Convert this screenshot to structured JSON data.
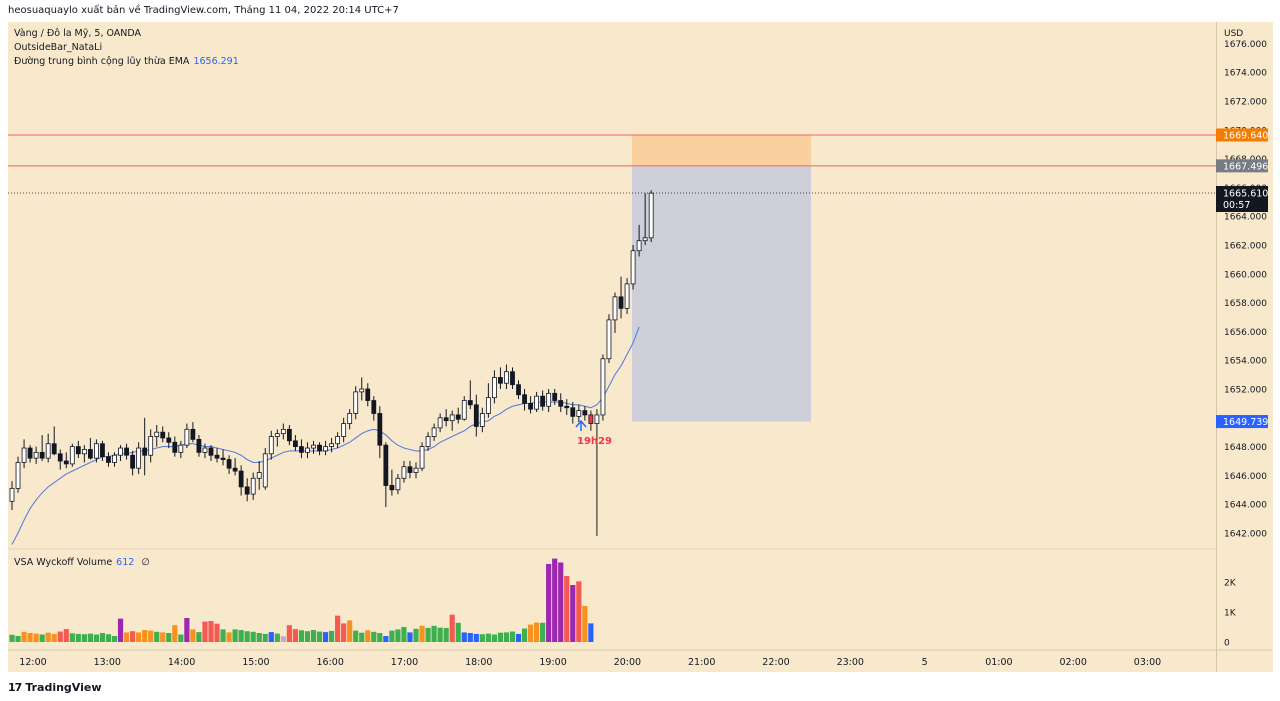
{
  "header": {
    "publish_line": "heosuaquaylo xuất bản về TradingView.com, Tháng 11 04, 2022 20:14 UTC+7"
  },
  "legend": {
    "symbol": "Vàng / Đô la Mỹ, 5, OANDA",
    "indicator1": "OutsideBar_NataLi",
    "ema_label": "Đường trung bình cộng lũy thừa EMA",
    "ema_value": "1656.291",
    "volume_label": "VSA Wyckoff Volume",
    "volume_value": "612",
    "volume_extra": "∅"
  },
  "annotation": {
    "text": "19h29"
  },
  "footer": {
    "brand": "TradingView"
  },
  "colors": {
    "bg": "#f9e9cc",
    "line_red": "#f2665a",
    "ema": "#5b7fde",
    "stop_zone": "#f8cf9d",
    "target_zone": "#cfcfd9",
    "label_orange": "#f57c00",
    "label_gray": "#787b86",
    "label_blue": "#2962ff"
  },
  "chart_data": {
    "type": "candlestick",
    "currency": "USD",
    "y_ticks": [
      "1676.000",
      "1674.000",
      "1672.000",
      "1670.000",
      "1668.000",
      "1666.000",
      "1664.000",
      "1662.000",
      "1660.000",
      "1658.000",
      "1656.000",
      "1654.000",
      "1652.000",
      "1650.000",
      "1648.000",
      "1646.000",
      "1644.000",
      "1642.000"
    ],
    "x_ticks": [
      "12:00",
      "13:00",
      "14:00",
      "15:00",
      "16:00",
      "17:00",
      "18:00",
      "19:00",
      "20:00",
      "21:00",
      "22:00",
      "23:00",
      "5",
      "01:00",
      "02:00",
      "03:00"
    ],
    "volume_ticks": [
      "2K",
      "1K",
      "0"
    ],
    "levels": {
      "red_upper": 1669.64,
      "red_lower": 1667.496,
      "current_price": 1665.61,
      "target": 1649.739
    },
    "price_labels": {
      "upper": "1669.640",
      "lower": "1667.496",
      "current": "1665.610",
      "countdown": "00:57",
      "target": "1649.739"
    },
    "candles": [
      [
        1644.2,
        1645.6,
        1643.6,
        1645.1
      ],
      [
        1645.1,
        1647.3,
        1644.8,
        1646.9
      ],
      [
        1646.9,
        1648.5,
        1646.5,
        1647.9
      ],
      [
        1647.9,
        1648.1,
        1646.9,
        1647.2
      ],
      [
        1647.2,
        1648.0,
        1646.8,
        1647.6
      ],
      [
        1647.6,
        1648.8,
        1647.0,
        1647.2
      ],
      [
        1647.2,
        1648.9,
        1646.9,
        1648.2
      ],
      [
        1648.2,
        1649.4,
        1647.4,
        1647.5
      ],
      [
        1647.5,
        1647.8,
        1646.4,
        1647.0
      ],
      [
        1647.0,
        1647.6,
        1646.5,
        1646.8
      ],
      [
        1646.8,
        1648.2,
        1646.6,
        1648.0
      ],
      [
        1648.0,
        1648.4,
        1647.2,
        1647.5
      ],
      [
        1647.5,
        1648.1,
        1646.9,
        1647.8
      ],
      [
        1647.8,
        1648.6,
        1647.1,
        1647.2
      ],
      [
        1647.2,
        1648.5,
        1646.9,
        1648.2
      ],
      [
        1648.2,
        1648.4,
        1647.0,
        1647.3
      ],
      [
        1647.3,
        1647.6,
        1646.6,
        1646.9
      ],
      [
        1646.9,
        1647.6,
        1646.6,
        1647.4
      ],
      [
        1647.4,
        1648.1,
        1647.0,
        1647.9
      ],
      [
        1647.9,
        1648.2,
        1647.1,
        1647.4
      ],
      [
        1647.4,
        1647.7,
        1646.0,
        1646.5
      ],
      [
        1646.5,
        1648.3,
        1646.1,
        1647.9
      ],
      [
        1647.9,
        1650.0,
        1646.0,
        1647.4
      ],
      [
        1647.4,
        1649.2,
        1646.9,
        1648.7
      ],
      [
        1648.7,
        1649.5,
        1648.0,
        1649.0
      ],
      [
        1649.0,
        1649.4,
        1648.3,
        1648.6
      ],
      [
        1648.6,
        1649.0,
        1647.9,
        1648.3
      ],
      [
        1648.3,
        1648.7,
        1647.3,
        1647.6
      ],
      [
        1647.6,
        1648.4,
        1647.2,
        1648.1
      ],
      [
        1648.1,
        1649.6,
        1647.9,
        1649.2
      ],
      [
        1649.2,
        1649.7,
        1648.3,
        1648.5
      ],
      [
        1648.5,
        1648.8,
        1647.3,
        1647.6
      ],
      [
        1647.6,
        1648.2,
        1647.2,
        1647.9
      ],
      [
        1647.9,
        1648.1,
        1647.0,
        1647.4
      ],
      [
        1647.4,
        1647.9,
        1646.9,
        1647.2
      ],
      [
        1647.2,
        1647.8,
        1646.7,
        1647.1
      ],
      [
        1647.1,
        1647.4,
        1646.1,
        1646.5
      ],
      [
        1646.5,
        1647.2,
        1646.0,
        1646.3
      ],
      [
        1646.3,
        1646.7,
        1644.6,
        1645.2
      ],
      [
        1645.2,
        1645.8,
        1644.2,
        1644.7
      ],
      [
        1644.7,
        1646.2,
        1644.3,
        1645.8
      ],
      [
        1645.8,
        1647.0,
        1645.0,
        1646.2
      ],
      [
        1645.2,
        1647.9,
        1645.0,
        1647.5
      ],
      [
        1647.5,
        1649.1,
        1647.1,
        1648.7
      ],
      [
        1648.7,
        1649.2,
        1648.0,
        1648.9
      ],
      [
        1648.9,
        1649.6,
        1648.5,
        1649.2
      ],
      [
        1649.2,
        1649.5,
        1648.1,
        1648.4
      ],
      [
        1648.4,
        1648.8,
        1647.7,
        1648.0
      ],
      [
        1648.0,
        1648.5,
        1647.2,
        1647.6
      ],
      [
        1647.6,
        1648.3,
        1647.2,
        1647.9
      ],
      [
        1647.9,
        1648.4,
        1647.5,
        1648.1
      ],
      [
        1648.1,
        1648.3,
        1647.4,
        1647.7
      ],
      [
        1647.7,
        1648.4,
        1647.4,
        1648.0
      ],
      [
        1648.0,
        1648.6,
        1647.6,
        1648.2
      ],
      [
        1648.2,
        1649.0,
        1647.9,
        1648.7
      ],
      [
        1648.7,
        1650.0,
        1648.3,
        1649.6
      ],
      [
        1649.6,
        1650.6,
        1649.2,
        1650.3
      ],
      [
        1650.3,
        1652.2,
        1649.9,
        1651.8
      ],
      [
        1651.8,
        1652.8,
        1651.2,
        1652.0
      ],
      [
        1652.0,
        1652.4,
        1650.8,
        1651.2
      ],
      [
        1651.2,
        1651.5,
        1649.8,
        1650.3
      ],
      [
        1650.3,
        1650.8,
        1647.2,
        1648.1
      ],
      [
        1648.1,
        1648.3,
        1643.8,
        1645.3
      ],
      [
        1645.3,
        1646.4,
        1644.6,
        1645.0
      ],
      [
        1645.0,
        1646.1,
        1644.7,
        1645.8
      ],
      [
        1645.8,
        1647.0,
        1645.5,
        1646.6
      ],
      [
        1646.6,
        1647.0,
        1645.8,
        1646.2
      ],
      [
        1646.2,
        1646.9,
        1645.8,
        1646.5
      ],
      [
        1646.5,
        1648.3,
        1646.3,
        1648.0
      ],
      [
        1648.0,
        1649.0,
        1647.7,
        1648.7
      ],
      [
        1648.7,
        1649.6,
        1648.4,
        1649.3
      ],
      [
        1649.3,
        1650.3,
        1649.0,
        1650.0
      ],
      [
        1650.0,
        1650.6,
        1649.4,
        1649.8
      ],
      [
        1649.8,
        1650.5,
        1649.1,
        1650.2
      ],
      [
        1650.2,
        1650.7,
        1649.6,
        1649.9
      ],
      [
        1649.9,
        1651.5,
        1649.8,
        1651.2
      ],
      [
        1651.2,
        1652.6,
        1650.6,
        1650.9
      ],
      [
        1650.9,
        1651.6,
        1648.7,
        1649.4
      ],
      [
        1649.4,
        1650.7,
        1649.0,
        1650.3
      ],
      [
        1650.3,
        1652.4,
        1650.0,
        1651.4
      ],
      [
        1651.4,
        1653.3,
        1651.0,
        1652.8
      ],
      [
        1652.8,
        1653.5,
        1652.0,
        1652.4
      ],
      [
        1652.4,
        1653.7,
        1652.0,
        1653.2
      ],
      [
        1653.2,
        1653.5,
        1652.0,
        1652.3
      ],
      [
        1652.3,
        1652.6,
        1651.3,
        1651.6
      ],
      [
        1651.6,
        1652.0,
        1650.5,
        1651.0
      ],
      [
        1651.0,
        1651.5,
        1650.3,
        1650.6
      ],
      [
        1650.6,
        1651.8,
        1650.4,
        1651.5
      ],
      [
        1651.5,
        1651.9,
        1650.5,
        1650.8
      ],
      [
        1650.8,
        1652.0,
        1650.4,
        1651.7
      ],
      [
        1651.7,
        1652.0,
        1650.9,
        1651.2
      ],
      [
        1651.2,
        1651.7,
        1650.4,
        1650.8
      ],
      [
        1650.8,
        1651.3,
        1650.2,
        1650.7
      ],
      [
        1650.7,
        1651.1,
        1649.6,
        1650.1
      ],
      [
        1650.1,
        1650.9,
        1649.7,
        1650.5
      ],
      [
        1650.5,
        1650.8,
        1649.8,
        1650.2
      ],
      [
        1650.2,
        1650.5,
        1649.1,
        1649.6
      ],
      [
        1649.6,
        1650.6,
        1641.8,
        1650.2
      ],
      [
        1650.2,
        1654.4,
        1649.8,
        1654.1
      ],
      [
        1654.1,
        1657.2,
        1653.8,
        1656.8
      ],
      [
        1656.8,
        1658.7,
        1655.9,
        1658.4
      ],
      [
        1658.4,
        1659.8,
        1656.9,
        1657.6
      ],
      [
        1657.6,
        1659.7,
        1657.2,
        1659.3
      ],
      [
        1659.3,
        1662.0,
        1658.9,
        1661.6
      ],
      [
        1661.6,
        1663.4,
        1661.2,
        1662.3
      ],
      [
        1662.3,
        1665.6,
        1662.0,
        1662.5
      ],
      [
        1662.5,
        1665.8,
        1662.2,
        1665.6
      ]
    ],
    "ema": [
      1641.2,
      1642.0,
      1642.9,
      1643.7,
      1644.3,
      1644.8,
      1645.2,
      1645.5,
      1645.8,
      1646.1,
      1646.3,
      1646.5,
      1646.7,
      1646.9,
      1647.1,
      1647.3,
      1647.3,
      1647.4,
      1647.5,
      1647.5,
      1647.6,
      1647.7,
      1647.7,
      1647.8,
      1647.9,
      1648.0,
      1648.0,
      1648.0,
      1648.1,
      1648.2,
      1648.2,
      1648.1,
      1648.0,
      1648.0,
      1647.9,
      1647.8,
      1647.7,
      1647.6,
      1647.4,
      1647.1,
      1646.9,
      1646.9,
      1647.0,
      1647.2,
      1647.4,
      1647.6,
      1647.7,
      1647.7,
      1647.7,
      1647.7,
      1647.7,
      1647.7,
      1647.7,
      1647.8,
      1647.9,
      1648.1,
      1648.3,
      1648.6,
      1648.9,
      1649.1,
      1649.2,
      1649.1,
      1648.8,
      1648.4,
      1648.1,
      1647.9,
      1647.8,
      1647.7,
      1647.7,
      1647.8,
      1648.0,
      1648.3,
      1648.5,
      1648.7,
      1648.9,
      1649.1,
      1649.4,
      1649.6,
      1649.7,
      1649.8,
      1650.1,
      1650.3,
      1650.6,
      1650.8,
      1650.9,
      1651.0,
      1651.0,
      1651.1,
      1651.1,
      1651.1,
      1651.1,
      1651.1,
      1651.0,
      1650.9,
      1650.9,
      1650.8,
      1650.7,
      1650.9,
      1651.4,
      1652.2,
      1653.0,
      1653.6,
      1654.4,
      1655.2,
      1656.3
    ],
    "volume": [
      [
        240,
        "#3fb04f"
      ],
      [
        200,
        "#3fb04f"
      ],
      [
        340,
        "#f6921e"
      ],
      [
        300,
        "#f6921e"
      ],
      [
        280,
        "#f6921e"
      ],
      [
        250,
        "#3fb04f"
      ],
      [
        310,
        "#f6921e"
      ],
      [
        270,
        "#f6921e"
      ],
      [
        350,
        "#f55a52"
      ],
      [
        430,
        "#f55a52"
      ],
      [
        290,
        "#3fb04f"
      ],
      [
        270,
        "#3fb04f"
      ],
      [
        260,
        "#3fb04f"
      ],
      [
        280,
        "#3fb04f"
      ],
      [
        250,
        "#3fb04f"
      ],
      [
        300,
        "#3fb04f"
      ],
      [
        260,
        "#3fb04f"
      ],
      [
        200,
        "#3fb04f"
      ],
      [
        780,
        "#9c27b0"
      ],
      [
        320,
        "#f6921e"
      ],
      [
        360,
        "#f55a52"
      ],
      [
        320,
        "#f6921e"
      ],
      [
        400,
        "#f6921e"
      ],
      [
        380,
        "#f6921e"
      ],
      [
        340,
        "#3fb04f"
      ],
      [
        320,
        "#f6921e"
      ],
      [
        300,
        "#3fb04f"
      ],
      [
        560,
        "#f6921e"
      ],
      [
        250,
        "#3fb04f"
      ],
      [
        800,
        "#9c27b0"
      ],
      [
        420,
        "#f6921e"
      ],
      [
        330,
        "#3fb04f"
      ],
      [
        680,
        "#f55a52"
      ],
      [
        700,
        "#f55a52"
      ],
      [
        610,
        "#f55a52"
      ],
      [
        420,
        "#3fb04f"
      ],
      [
        320,
        "#f6921e"
      ],
      [
        420,
        "#3fb04f"
      ],
      [
        400,
        "#3fb04f"
      ],
      [
        360,
        "#3fb04f"
      ],
      [
        340,
        "#3fb04f"
      ],
      [
        300,
        "#3fb04f"
      ],
      [
        270,
        "#3fb04f"
      ],
      [
        330,
        "#2962ff"
      ],
      [
        280,
        "#3fb04f"
      ],
      [
        190,
        "#c6a8c8"
      ],
      [
        560,
        "#f55a52"
      ],
      [
        430,
        "#f55a52"
      ],
      [
        390,
        "#3fb04f"
      ],
      [
        360,
        "#3fb04f"
      ],
      [
        400,
        "#3fb04f"
      ],
      [
        350,
        "#3fb04f"
      ],
      [
        330,
        "#2962ff"
      ],
      [
        370,
        "#3fb04f"
      ],
      [
        880,
        "#f55a52"
      ],
      [
        620,
        "#f55a52"
      ],
      [
        720,
        "#f6921e"
      ],
      [
        380,
        "#3fb04f"
      ],
      [
        310,
        "#3fb04f"
      ],
      [
        390,
        "#f6921e"
      ],
      [
        340,
        "#3fb04f"
      ],
      [
        300,
        "#3fb04f"
      ],
      [
        200,
        "#2962ff"
      ],
      [
        380,
        "#3fb04f"
      ],
      [
        420,
        "#3fb04f"
      ],
      [
        500,
        "#3fb04f"
      ],
      [
        320,
        "#2962ff"
      ],
      [
        440,
        "#3fb04f"
      ],
      [
        540,
        "#f6921e"
      ],
      [
        470,
        "#3fb04f"
      ],
      [
        540,
        "#3fb04f"
      ],
      [
        480,
        "#3fb04f"
      ],
      [
        470,
        "#3fb04f"
      ],
      [
        910,
        "#f55a52"
      ],
      [
        640,
        "#3fb04f"
      ],
      [
        320,
        "#2962ff"
      ],
      [
        300,
        "#2962ff"
      ],
      [
        270,
        "#2962ff"
      ],
      [
        260,
        "#3fb04f"
      ],
      [
        280,
        "#3fb04f"
      ],
      [
        250,
        "#3fb04f"
      ],
      [
        310,
        "#3fb04f"
      ],
      [
        320,
        "#3fb04f"
      ],
      [
        350,
        "#3fb04f"
      ],
      [
        270,
        "#2962ff"
      ],
      [
        450,
        "#3fb04f"
      ],
      [
        580,
        "#f6921e"
      ],
      [
        650,
        "#f6921e"
      ],
      [
        640,
        "#3fb04f"
      ],
      [
        2600,
        "#9c27b0"
      ],
      [
        2780,
        "#9c27b0"
      ],
      [
        2650,
        "#9c27b0"
      ],
      [
        2200,
        "#f55a52"
      ],
      [
        1900,
        "#9c27b0"
      ],
      [
        2020,
        "#f55a52"
      ],
      [
        1200,
        "#f6921e"
      ],
      [
        620,
        "#2962ff"
      ]
    ]
  }
}
